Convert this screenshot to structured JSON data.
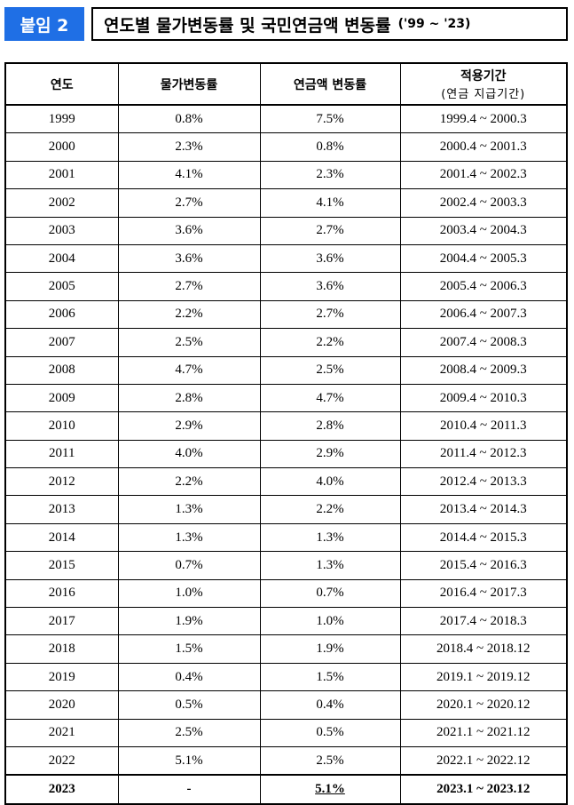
{
  "header": {
    "tag": "붙임 2",
    "title": "연도별 물가변동률 및 국민연금액 변동률",
    "title_suffix": "('99 ~ '23)"
  },
  "table": {
    "header": [
      "연도",
      "물가변동률",
      "연금액 변동률",
      "적용기간"
    ],
    "header_note": "(연금 지급기간)",
    "rows": [
      [
        "1999",
        "0.8%",
        "7.5%",
        "1999.4 ~ 2000.3"
      ],
      [
        "2000",
        "2.3%",
        "0.8%",
        "2000.4 ~ 2001.3"
      ],
      [
        "2001",
        "4.1%",
        "2.3%",
        "2001.4 ~ 2002.3"
      ],
      [
        "2002",
        "2.7%",
        "4.1%",
        "2002.4 ~ 2003.3"
      ],
      [
        "2003",
        "3.6%",
        "2.7%",
        "2003.4 ~ 2004.3"
      ],
      [
        "2004",
        "3.6%",
        "3.6%",
        "2004.4 ~ 2005.3"
      ],
      [
        "2005",
        "2.7%",
        "3.6%",
        "2005.4 ~ 2006.3"
      ],
      [
        "2006",
        "2.2%",
        "2.7%",
        "2006.4 ~ 2007.3"
      ],
      [
        "2007",
        "2.5%",
        "2.2%",
        "2007.4 ~ 2008.3"
      ],
      [
        "2008",
        "4.7%",
        "2.5%",
        "2008.4 ~ 2009.3"
      ],
      [
        "2009",
        "2.8%",
        "4.7%",
        "2009.4 ~ 2010.3"
      ],
      [
        "2010",
        "2.9%",
        "2.8%",
        "2010.4 ~ 2011.3"
      ],
      [
        "2011",
        "4.0%",
        "2.9%",
        "2011.4 ~ 2012.3"
      ],
      [
        "2012",
        "2.2%",
        "4.0%",
        "2012.4 ~ 2013.3"
      ],
      [
        "2013",
        "1.3%",
        "2.2%",
        "2013.4 ~ 2014.3"
      ],
      [
        "2014",
        "1.3%",
        "1.3%",
        "2014.4 ~ 2015.3"
      ],
      [
        "2015",
        "0.7%",
        "1.3%",
        "2015.4 ~ 2016.3"
      ],
      [
        "2016",
        "1.0%",
        "0.7%",
        "2016.4 ~ 2017.3"
      ],
      [
        "2017",
        "1.9%",
        "1.0%",
        "2017.4 ~ 2018.3"
      ],
      [
        "2018",
        "1.5%",
        "1.9%",
        "2018.4 ~ 2018.12"
      ],
      [
        "2019",
        "0.4%",
        "1.5%",
        "2019.1 ~ 2019.12"
      ],
      [
        "2020",
        "0.5%",
        "0.4%",
        "2020.1 ~ 2020.12"
      ],
      [
        "2021",
        "2.5%",
        "0.5%",
        "2021.1 ~ 2021.12"
      ],
      [
        "2022",
        "5.1%",
        "2.5%",
        "2022.1 ~ 2022.12"
      ],
      [
        "2023",
        "-",
        "5.1%",
        "2023.1 ~ 2023.12"
      ]
    ]
  }
}
